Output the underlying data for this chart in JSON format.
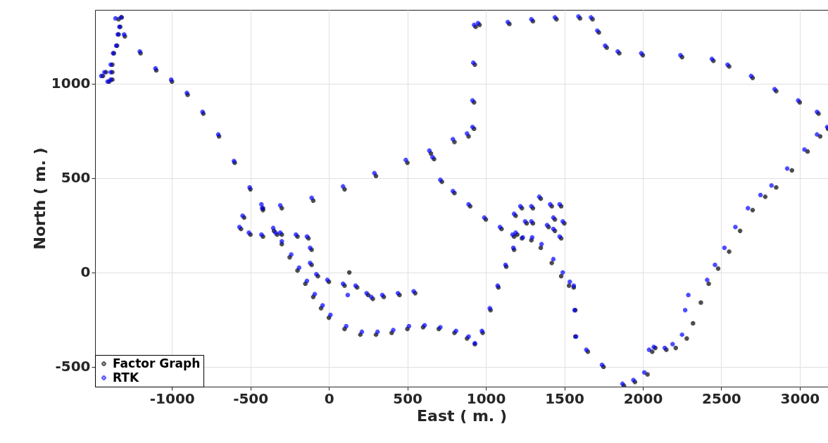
{
  "chart_data": {
    "type": "scatter",
    "xlabel": "East ( m. )",
    "ylabel": "North ( m. )",
    "xlim": [
      -1490,
      3180
    ],
    "ylim": [
      -605,
      1390
    ],
    "xticks": [
      -1000,
      -500,
      0,
      500,
      1000,
      1500,
      2000,
      2500,
      3000
    ],
    "yticks": [
      -500,
      0,
      500,
      1000
    ],
    "grid": true,
    "legend": "bottom left",
    "marker": "cross",
    "series": [
      {
        "name": "Factor Graph",
        "color": "#000000",
        "x": [
          -1440,
          -1400,
          -1380,
          -1380,
          -1420,
          -1380,
          -1370,
          -1350,
          -1340,
          -1330,
          -1320,
          -1340,
          -1300,
          -1200,
          -1100,
          -1000,
          -900,
          -800,
          -700,
          -600,
          -500,
          -420,
          -350,
          -300,
          -250,
          -200,
          -150,
          -100,
          -50,
          0,
          100,
          200,
          300,
          400,
          500,
          600,
          700,
          800,
          880,
          930,
          980,
          1030,
          1080,
          1130,
          1180,
          1230,
          1290,
          1350,
          1420,
          1480,
          1530,
          1560,
          1570,
          1570,
          1650,
          1750,
          1880,
          1950,
          2030,
          2060,
          2080,
          2150,
          2210,
          2280,
          2320,
          2370,
          2420,
          2480,
          2550,
          2620,
          2700,
          2780,
          2850,
          2950,
          3050,
          3130,
          3180,
          3120,
          3000,
          2850,
          2700,
          2550,
          2450,
          2250,
          2000,
          1850,
          1770,
          1720,
          1680,
          1600,
          1450,
          1300,
          1150,
          960,
          935,
          930,
          925,
          925,
          890,
          800,
          650,
          500,
          300,
          100,
          -100,
          -300,
          -420,
          670,
          720,
          800,
          900,
          1000,
          1100,
          1180,
          -330,
          -420,
          -500,
          -560,
          -540,
          -300,
          -200,
          -130,
          -110,
          -110,
          -70,
          0,
          100,
          130,
          180,
          250,
          280,
          350,
          450,
          550,
          1200,
          1190,
          1230,
          1260,
          1300,
          1350,
          1420,
          1440,
          1400,
          1300,
          1440,
          1480,
          1500,
          1480
        ],
        "values": [
          1040,
          1010,
          1020,
          1060,
          1060,
          1100,
          1160,
          1200,
          1260,
          1300,
          1350,
          1340,
          1250,
          1160,
          1070,
          1010,
          940,
          840,
          720,
          580,
          440,
          330,
          220,
          150,
          80,
          10,
          -60,
          -130,
          -190,
          -240,
          -300,
          -330,
          -330,
          -320,
          -300,
          -290,
          -300,
          -320,
          -350,
          -380,
          -320,
          -200,
          -80,
          30,
          120,
          180,
          170,
          130,
          50,
          -20,
          -70,
          -80,
          -200,
          -340,
          -420,
          -500,
          -600,
          -580,
          -540,
          -420,
          -400,
          -410,
          -400,
          -350,
          -270,
          -160,
          -60,
          20,
          110,
          220,
          330,
          400,
          450,
          540,
          640,
          720,
          760,
          840,
          900,
          960,
          1030,
          1090,
          1120,
          1140,
          1150,
          1160,
          1190,
          1270,
          1340,
          1345,
          1340,
          1330,
          1315,
          1310,
          1300,
          1100,
          900,
          760,
          720,
          690,
          630,
          580,
          510,
          440,
          380,
          340,
          340,
          600,
          480,
          420,
          350,
          280,
          230,
          190,
          200,
          190,
          200,
          230,
          290,
          200,
          190,
          180,
          120,
          40,
          -20,
          -50,
          -70,
          0,
          -80,
          -120,
          -140,
          -130,
          -120,
          -110,
          200,
          300,
          340,
          260,
          340,
          390,
          350,
          280,
          240,
          260,
          220,
          180,
          260,
          350
        ]
      },
      {
        "name": "RTK",
        "color": "#0000ff",
        "x": [
          -1450,
          -1410,
          -1390,
          -1390,
          -1430,
          -1390,
          -1375,
          -1355,
          -1345,
          -1335,
          -1325,
          -1360,
          -1305,
          -1205,
          -1105,
          -1005,
          -905,
          -805,
          -705,
          -605,
          -505,
          -425,
          -355,
          -300,
          -240,
          -190,
          -140,
          -90,
          -40,
          10,
          110,
          210,
          310,
          410,
          510,
          610,
          710,
          810,
          890,
          930,
          975,
          1025,
          1075,
          1125,
          1175,
          1235,
          1295,
          1355,
          1430,
          1490,
          1535,
          1560,
          1565,
          1575,
          1640,
          1740,
          1870,
          1940,
          2010,
          2040,
          2070,
          2140,
          2190,
          2250,
          2270,
          2290,
          2410,
          2460,
          2520,
          2590,
          2670,
          2750,
          2820,
          2920,
          3030,
          3110,
          3175,
          3110,
          2990,
          2840,
          2690,
          2540,
          2440,
          2240,
          1990,
          1840,
          1760,
          1710,
          1670,
          1590,
          1440,
          1290,
          1140,
          950,
          925,
          920,
          915,
          915,
          880,
          790,
          640,
          490,
          290,
          90,
          -110,
          -310,
          -430,
          660,
          710,
          790,
          890,
          990,
          1090,
          1170,
          -340,
          -430,
          -510,
          -570,
          -550,
          -310,
          -210,
          -140,
          -120,
          -120,
          -80,
          -10,
          90,
          120,
          170,
          240,
          270,
          340,
          440,
          540,
          1190,
          1180,
          1220,
          1250,
          1290,
          1340,
          1410,
          1430,
          1390,
          1290,
          1430,
          1470,
          1490,
          1470
        ],
        "values": [
          1040,
          1010,
          1020,
          1060,
          1060,
          1100,
          1160,
          1200,
          1260,
          1300,
          1350,
          1345,
          1260,
          1170,
          1080,
          1020,
          950,
          850,
          730,
          590,
          450,
          340,
          235,
          165,
          95,
          25,
          -45,
          -115,
          -175,
          -225,
          -285,
          -315,
          -315,
          -305,
          -285,
          -280,
          -290,
          -310,
          -340,
          -375,
          -310,
          -190,
          -70,
          40,
          130,
          185,
          185,
          150,
          70,
          0,
          -50,
          -70,
          -200,
          -340,
          -410,
          -490,
          -590,
          -570,
          -530,
          -410,
          -395,
          -400,
          -380,
          -330,
          -200,
          -120,
          -40,
          40,
          130,
          240,
          340,
          410,
          460,
          550,
          650,
          730,
          770,
          850,
          910,
          970,
          1040,
          1100,
          1130,
          1150,
          1160,
          1170,
          1200,
          1280,
          1350,
          1355,
          1350,
          1340,
          1325,
          1320,
          1310,
          1110,
          910,
          770,
          735,
          705,
          645,
          595,
          525,
          455,
          395,
          355,
          360,
          610,
          490,
          430,
          360,
          290,
          240,
          200,
          210,
          200,
          210,
          240,
          300,
          210,
          200,
          190,
          130,
          50,
          -10,
          -40,
          -60,
          -120,
          -70,
          -110,
          -130,
          -120,
          -110,
          -100,
          210,
          310,
          350,
          270,
          350,
          400,
          360,
          290,
          250,
          270,
          230,
          190,
          270,
          360
        ]
      }
    ]
  }
}
